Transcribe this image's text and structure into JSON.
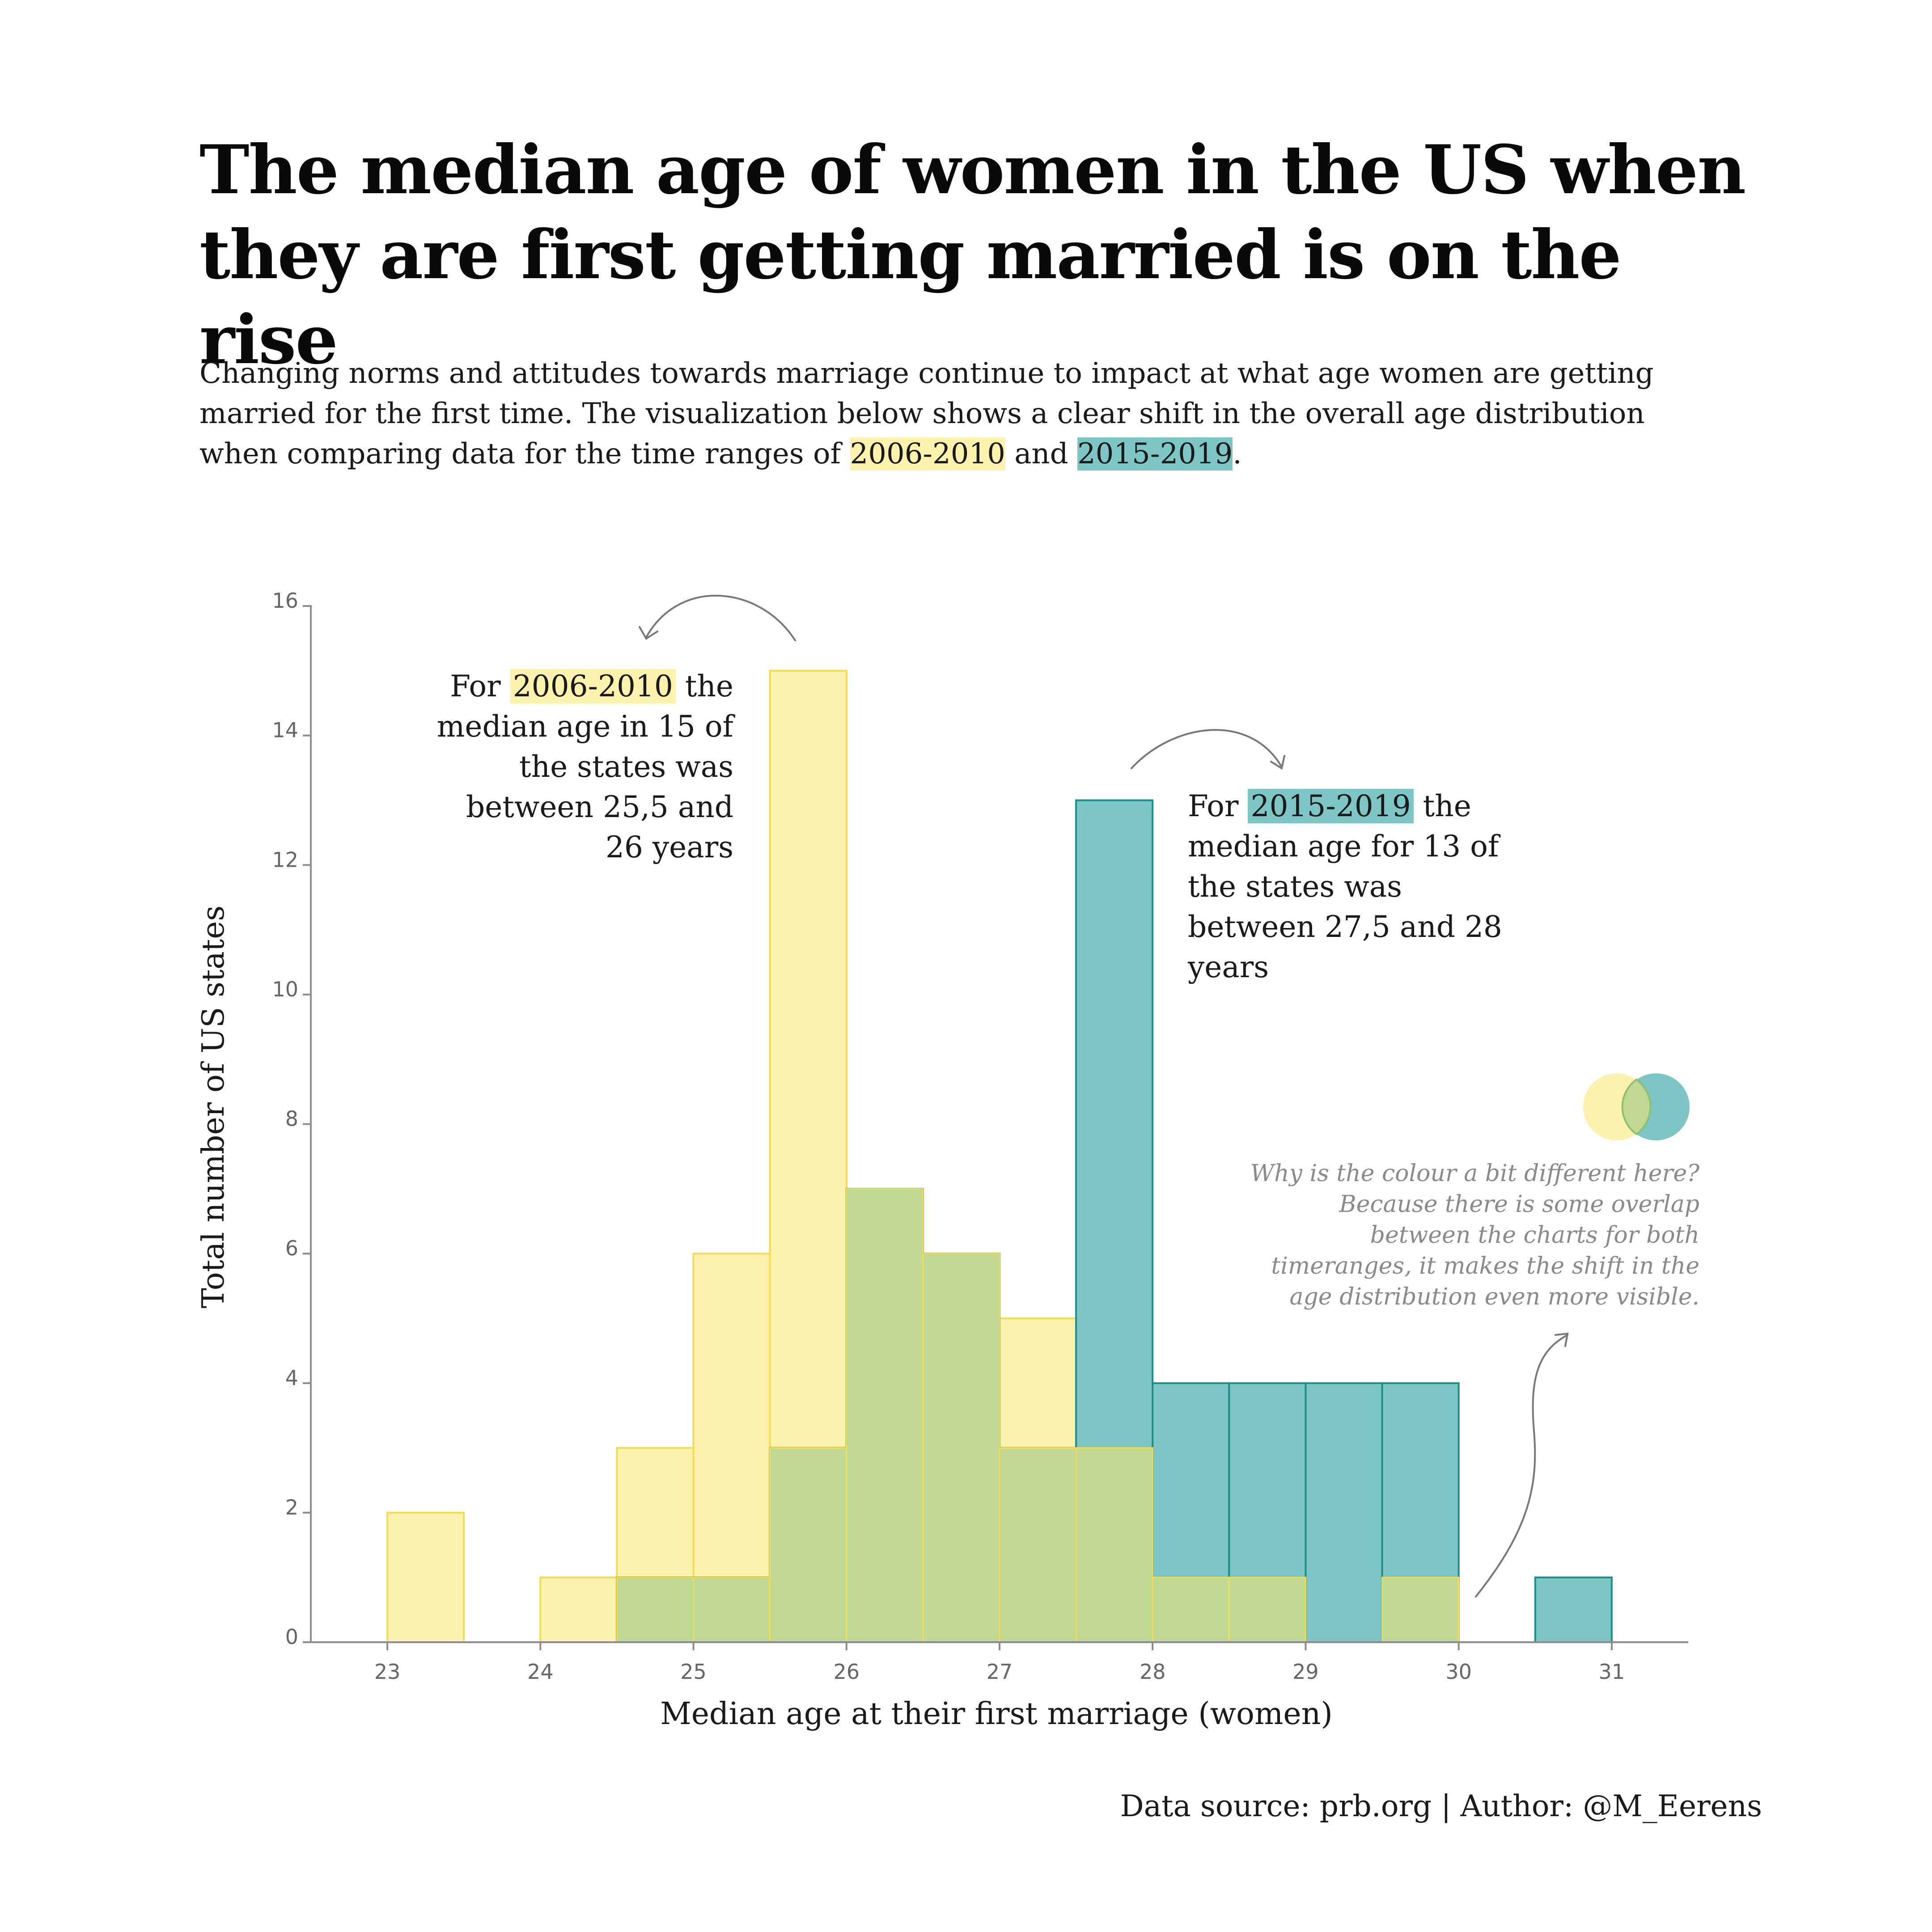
{
  "title": "The median age of women in the US when they are first getting married is on the rise",
  "subtitle": {
    "before": "Changing norms and attitudes towards marriage continue to impact at what age women are getting married for the first time. The visualization below shows a clear shift in the overall age distribution when comparing data for the time ranges of ",
    "range_a": "2006-2010",
    "middle": " and ",
    "range_b": "2015-2019",
    "end": "."
  },
  "colors": {
    "series_2006_fill": "#fcf1ad",
    "series_2006_stroke": "#f2dc55",
    "series_2015_fill": "#7dc6c5",
    "series_2015_stroke": "#1d8d88",
    "overlap_fill": "#c1d894",
    "axis": "#8c8c8c",
    "text": "#1a1a1a",
    "muted": "#8a8a8a"
  },
  "annotations": {
    "a": {
      "prefix": "For ",
      "highlight": "2006-2010",
      "suffix": " the",
      "rest": "median age in 15 of the states was between 25,5 and 26 years"
    },
    "b": {
      "prefix": "For ",
      "highlight": "2015-2019",
      "suffix": " the",
      "rest": "median age for 13 of the  states was between 27,5 and 28 years"
    }
  },
  "note": "Why is the colour a bit different here? Because there is some overlap between the charts for both timeranges, it makes the shift in the age distribution even more visible.",
  "source": "Data source: prb.org | Author: @M_Eerens",
  "chart_data": {
    "type": "histogram",
    "title": "The median age of women in the US when they are first getting married is on the rise",
    "xlabel": "Median age at their first marriage (women)",
    "ylabel": "Total number of US states",
    "bin_width": 0.5,
    "xlim": [
      22.5,
      31.5
    ],
    "ylim": [
      0,
      16
    ],
    "xticks": [
      23,
      24,
      25,
      26,
      27,
      28,
      29,
      30,
      31
    ],
    "yticks": [
      0,
      2,
      4,
      6,
      8,
      10,
      12,
      14,
      16
    ],
    "bin_starts": [
      23,
      23.5,
      24,
      24.5,
      25,
      25.5,
      26,
      26.5,
      27,
      27.5,
      28,
      28.5,
      29,
      29.5,
      30,
      30.5
    ],
    "series": [
      {
        "name": "2006-2010",
        "values": [
          2,
          0,
          1,
          3,
          6,
          15,
          7,
          6,
          5,
          3,
          1,
          1,
          0,
          1,
          0,
          0
        ]
      },
      {
        "name": "2015-2019",
        "values": [
          0,
          0,
          0,
          1,
          1,
          3,
          7,
          6,
          3,
          13,
          4,
          4,
          4,
          4,
          0,
          1
        ]
      }
    ]
  }
}
